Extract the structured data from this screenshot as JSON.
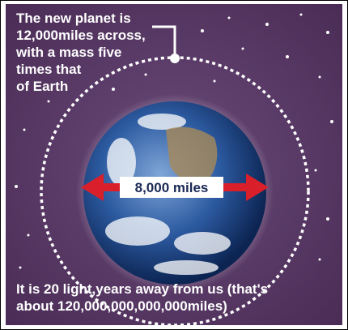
{
  "annotation": {
    "lines": [
      "The new planet is",
      "12,000miles across,",
      "with a mass five",
      "times that",
      "of Earth"
    ]
  },
  "earth_label": "8,000 miles",
  "footer": {
    "lines": [
      "It is 20 light,years away from us (that's",
      "about 120,000,000,000,000miles)"
    ]
  }
}
